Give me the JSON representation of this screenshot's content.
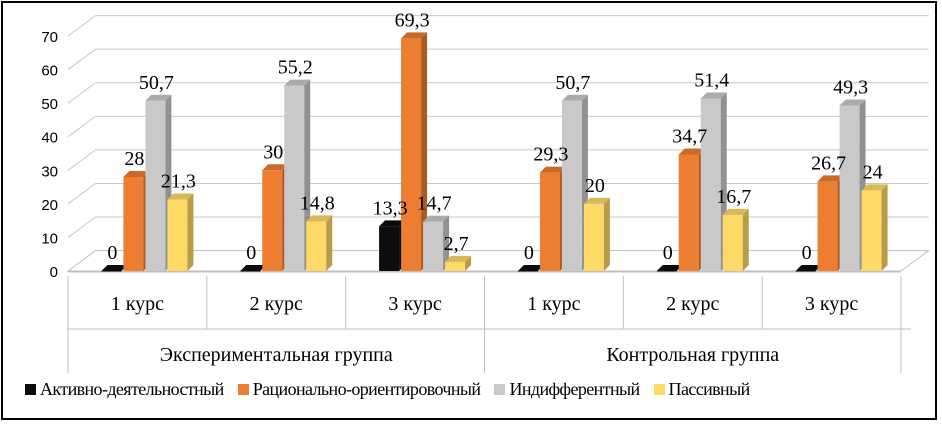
{
  "chart_data": {
    "type": "bar",
    "style": "3d-clustered",
    "groups": [
      {
        "label": "Экспериментальная группа",
        "categories": [
          "1 курс",
          "2 курс",
          "3 курс"
        ]
      },
      {
        "label": "Контрольная группа",
        "categories": [
          "1 курс",
          "2 курс",
          "3 курс"
        ]
      }
    ],
    "categories": [
      "1 курс",
      "2 курс",
      "3 курс",
      "1 курс",
      "2 курс",
      "3 курс"
    ],
    "series": [
      {
        "name": "Активно-деятельностный",
        "color": "#0d0d0d",
        "values": [
          0,
          0,
          13.3,
          0,
          0,
          0
        ],
        "labels": [
          "0",
          "0",
          "13,3",
          "0",
          "0",
          "0"
        ]
      },
      {
        "name": "Рационально-ориентировочный",
        "color": "#ed7d31",
        "values": [
          28,
          30,
          69.3,
          29.3,
          34.7,
          26.7
        ],
        "labels": [
          "28",
          "30",
          "69,3",
          "29,3",
          "34,7",
          "26,7"
        ]
      },
      {
        "name": "Индифферентный",
        "color": "#c9c9c9",
        "values": [
          50.7,
          55.2,
          14.7,
          50.7,
          51.4,
          49.3
        ],
        "labels": [
          "50,7",
          "55,2",
          "14,7",
          "50,7",
          "51,4",
          "49,3"
        ]
      },
      {
        "name": "Пассивный",
        "color": "#ffd966",
        "values": [
          21.3,
          14.8,
          2.7,
          20,
          16.7,
          24
        ],
        "labels": [
          "21,3",
          "14,8",
          "2,7",
          "20",
          "16,7",
          "24"
        ]
      }
    ],
    "ylim": [
      0,
      70
    ],
    "yticks": [
      "0",
      "10",
      "20",
      "30",
      "40",
      "50",
      "60",
      "70"
    ],
    "grid": true,
    "legend": "bottom"
  }
}
